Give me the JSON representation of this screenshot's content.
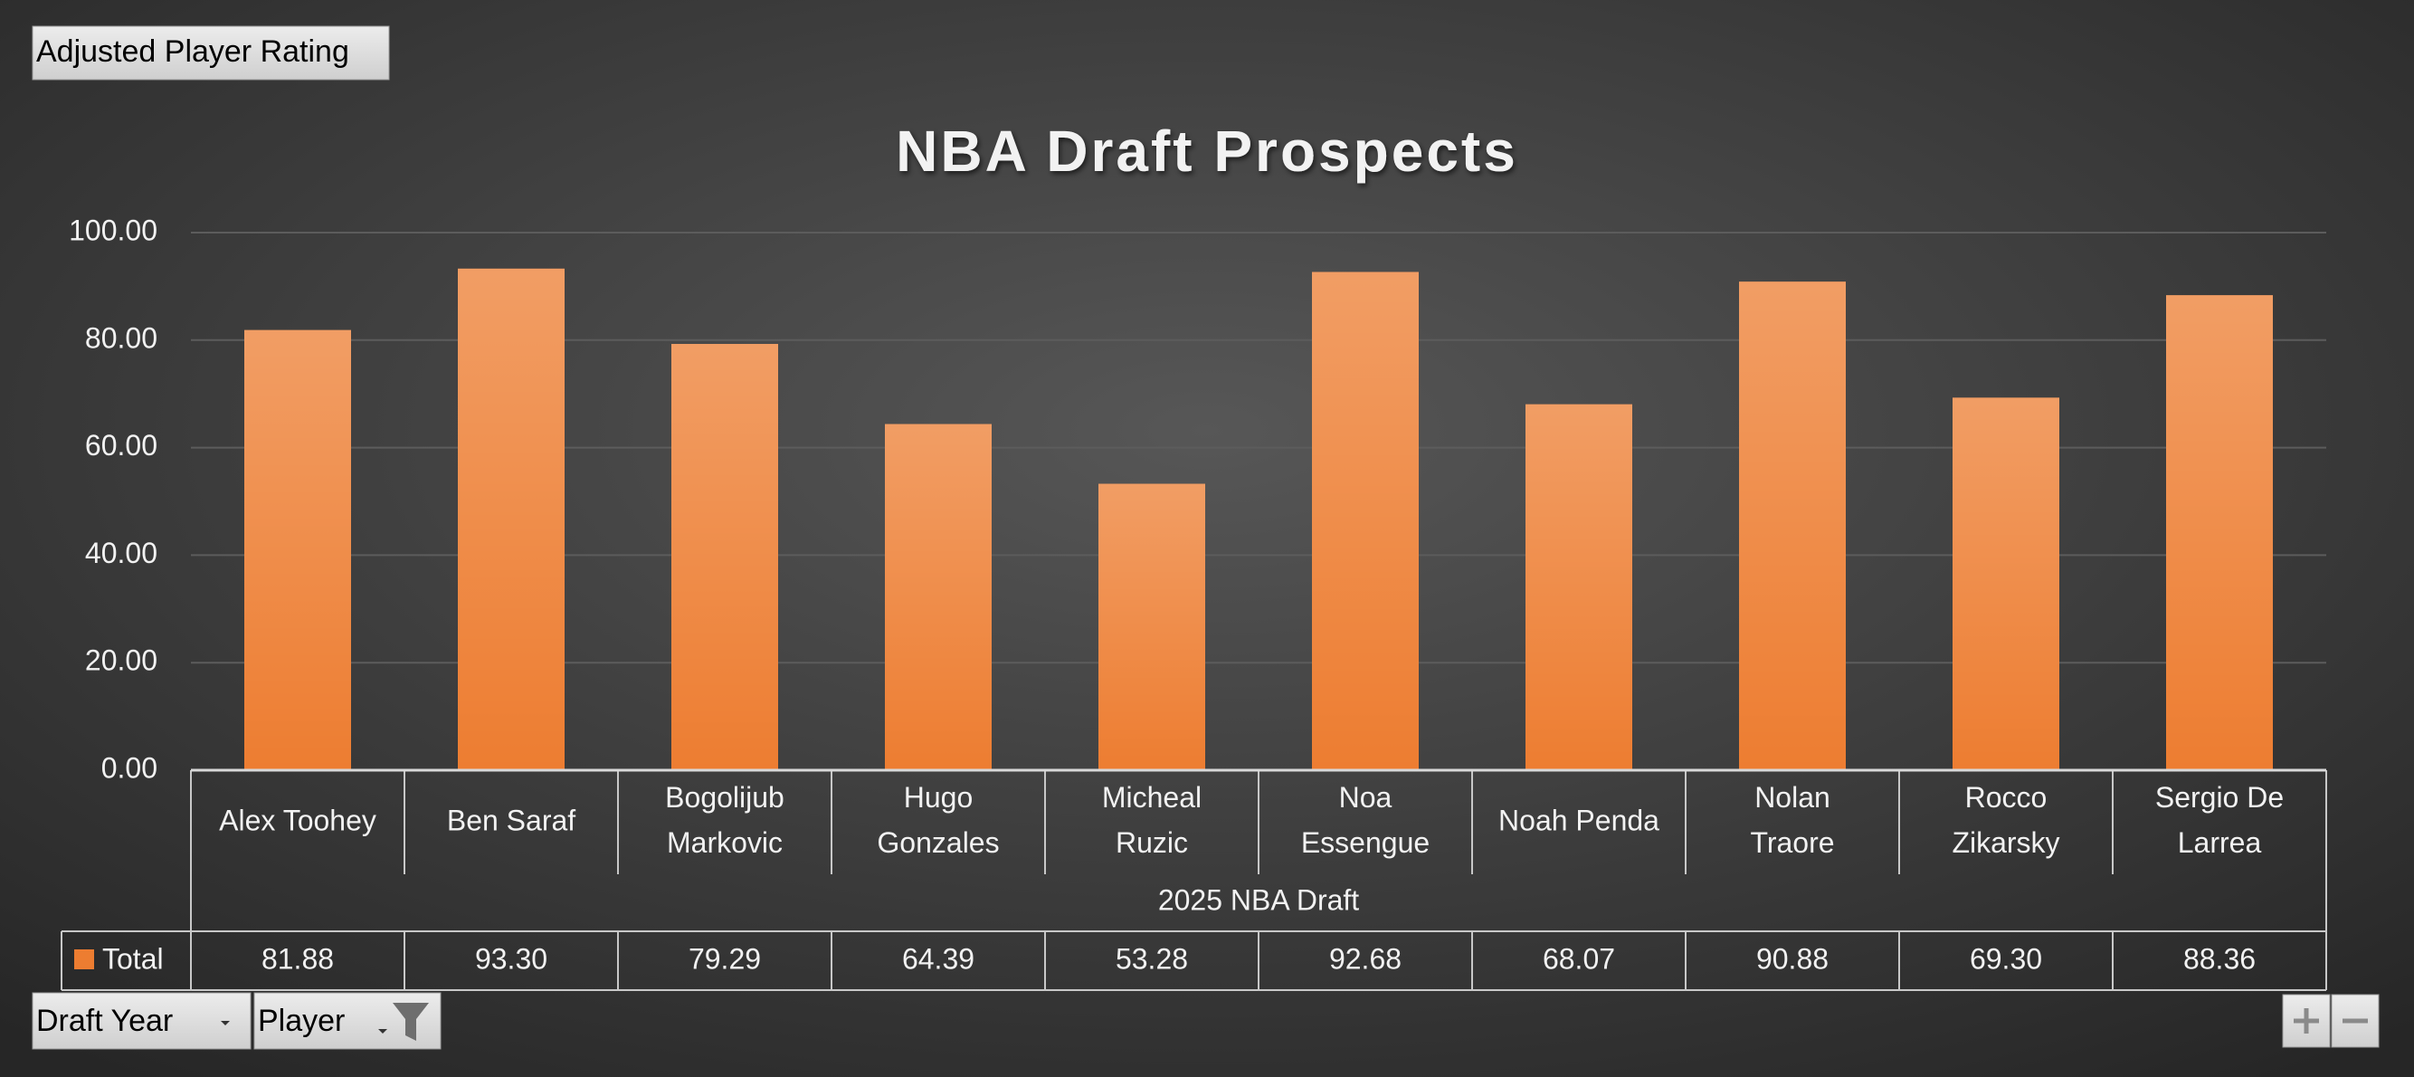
{
  "chart_data": {
    "type": "bar",
    "title": "NBA Draft Prospects",
    "value_field_button": "Adjusted Player Rating",
    "row_field_buttons": [
      "Draft Year",
      "Player"
    ],
    "group_label": "2025 NBA Draft",
    "categories": [
      "Alex Toohey",
      "Ben Saraf",
      "Bogolijub\nMarkovic",
      "Hugo\nGonzales",
      "Micheal\nRuzic",
      "Noa\nEssengue",
      "Noah Penda",
      "Nolan\nTraore",
      "Rocco\nZikarsky",
      "Sergio De\nLarrea"
    ],
    "series": [
      {
        "name": "Total",
        "color": "#ed7d31",
        "values": [
          81.88,
          93.3,
          79.29,
          64.39,
          53.28,
          92.68,
          68.07,
          90.88,
          69.3,
          88.36
        ],
        "value_labels": [
          "81.88",
          "93.30",
          "79.29",
          "64.39",
          "53.28",
          "92.68",
          "68.07",
          "90.88",
          "69.30",
          "88.36"
        ]
      }
    ],
    "ylim": [
      0,
      100
    ],
    "yticks": [
      {
        "value": 0,
        "label": "0.00"
      },
      {
        "value": 20,
        "label": "20.00"
      },
      {
        "value": 40,
        "label": "40.00"
      },
      {
        "value": 60,
        "label": "60.00"
      },
      {
        "value": 80,
        "label": "80.00"
      },
      {
        "value": 100,
        "label": "100.00"
      }
    ],
    "grid": true
  }
}
